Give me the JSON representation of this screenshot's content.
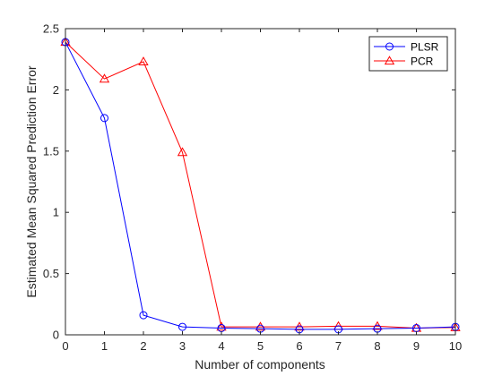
{
  "chart_data": {
    "type": "line",
    "xlabel": "Number of components",
    "ylabel": "Estimated Mean Squared Prediction Error",
    "xlim": [
      0,
      10
    ],
    "ylim": [
      0,
      2.5
    ],
    "x_ticks": [
      0,
      1,
      2,
      3,
      4,
      5,
      6,
      7,
      8,
      9,
      10
    ],
    "y_ticks": [
      0,
      0.5,
      1,
      1.5,
      2,
      2.5
    ],
    "x_tick_labels": [
      "0",
      "1",
      "2",
      "3",
      "4",
      "5",
      "6",
      "7",
      "8",
      "9",
      "10"
    ],
    "y_tick_labels": [
      "0",
      "0.5",
      "1",
      "1.5",
      "2",
      "2.5"
    ],
    "grid": false,
    "legend_position": "top-right",
    "x": [
      0,
      1,
      2,
      3,
      4,
      5,
      6,
      7,
      8,
      9,
      10
    ],
    "series": [
      {
        "name": "PLSR",
        "color": "#0000ff",
        "marker": "circle",
        "values": [
          2.39,
          1.77,
          0.16,
          0.065,
          0.055,
          0.05,
          0.045,
          0.045,
          0.05,
          0.055,
          0.065
        ]
      },
      {
        "name": "PCR",
        "color": "#ff0000",
        "marker": "triangle",
        "values": [
          2.39,
          2.09,
          2.23,
          1.49,
          0.065,
          0.065,
          0.065,
          0.07,
          0.07,
          0.055,
          0.06
        ]
      }
    ]
  }
}
